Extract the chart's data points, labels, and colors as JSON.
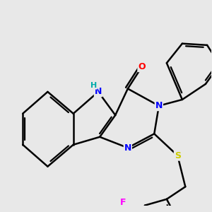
{
  "background_color": "#e8e8e8",
  "atom_colors": {
    "N": "#0000ff",
    "O": "#ff0000",
    "S": "#cccc00",
    "F": "#ff00ff",
    "H": "#00aaaa",
    "C": "#000000"
  },
  "bond_color": "#000000",
  "bond_width": 1.8,
  "font_size_atom": 9
}
